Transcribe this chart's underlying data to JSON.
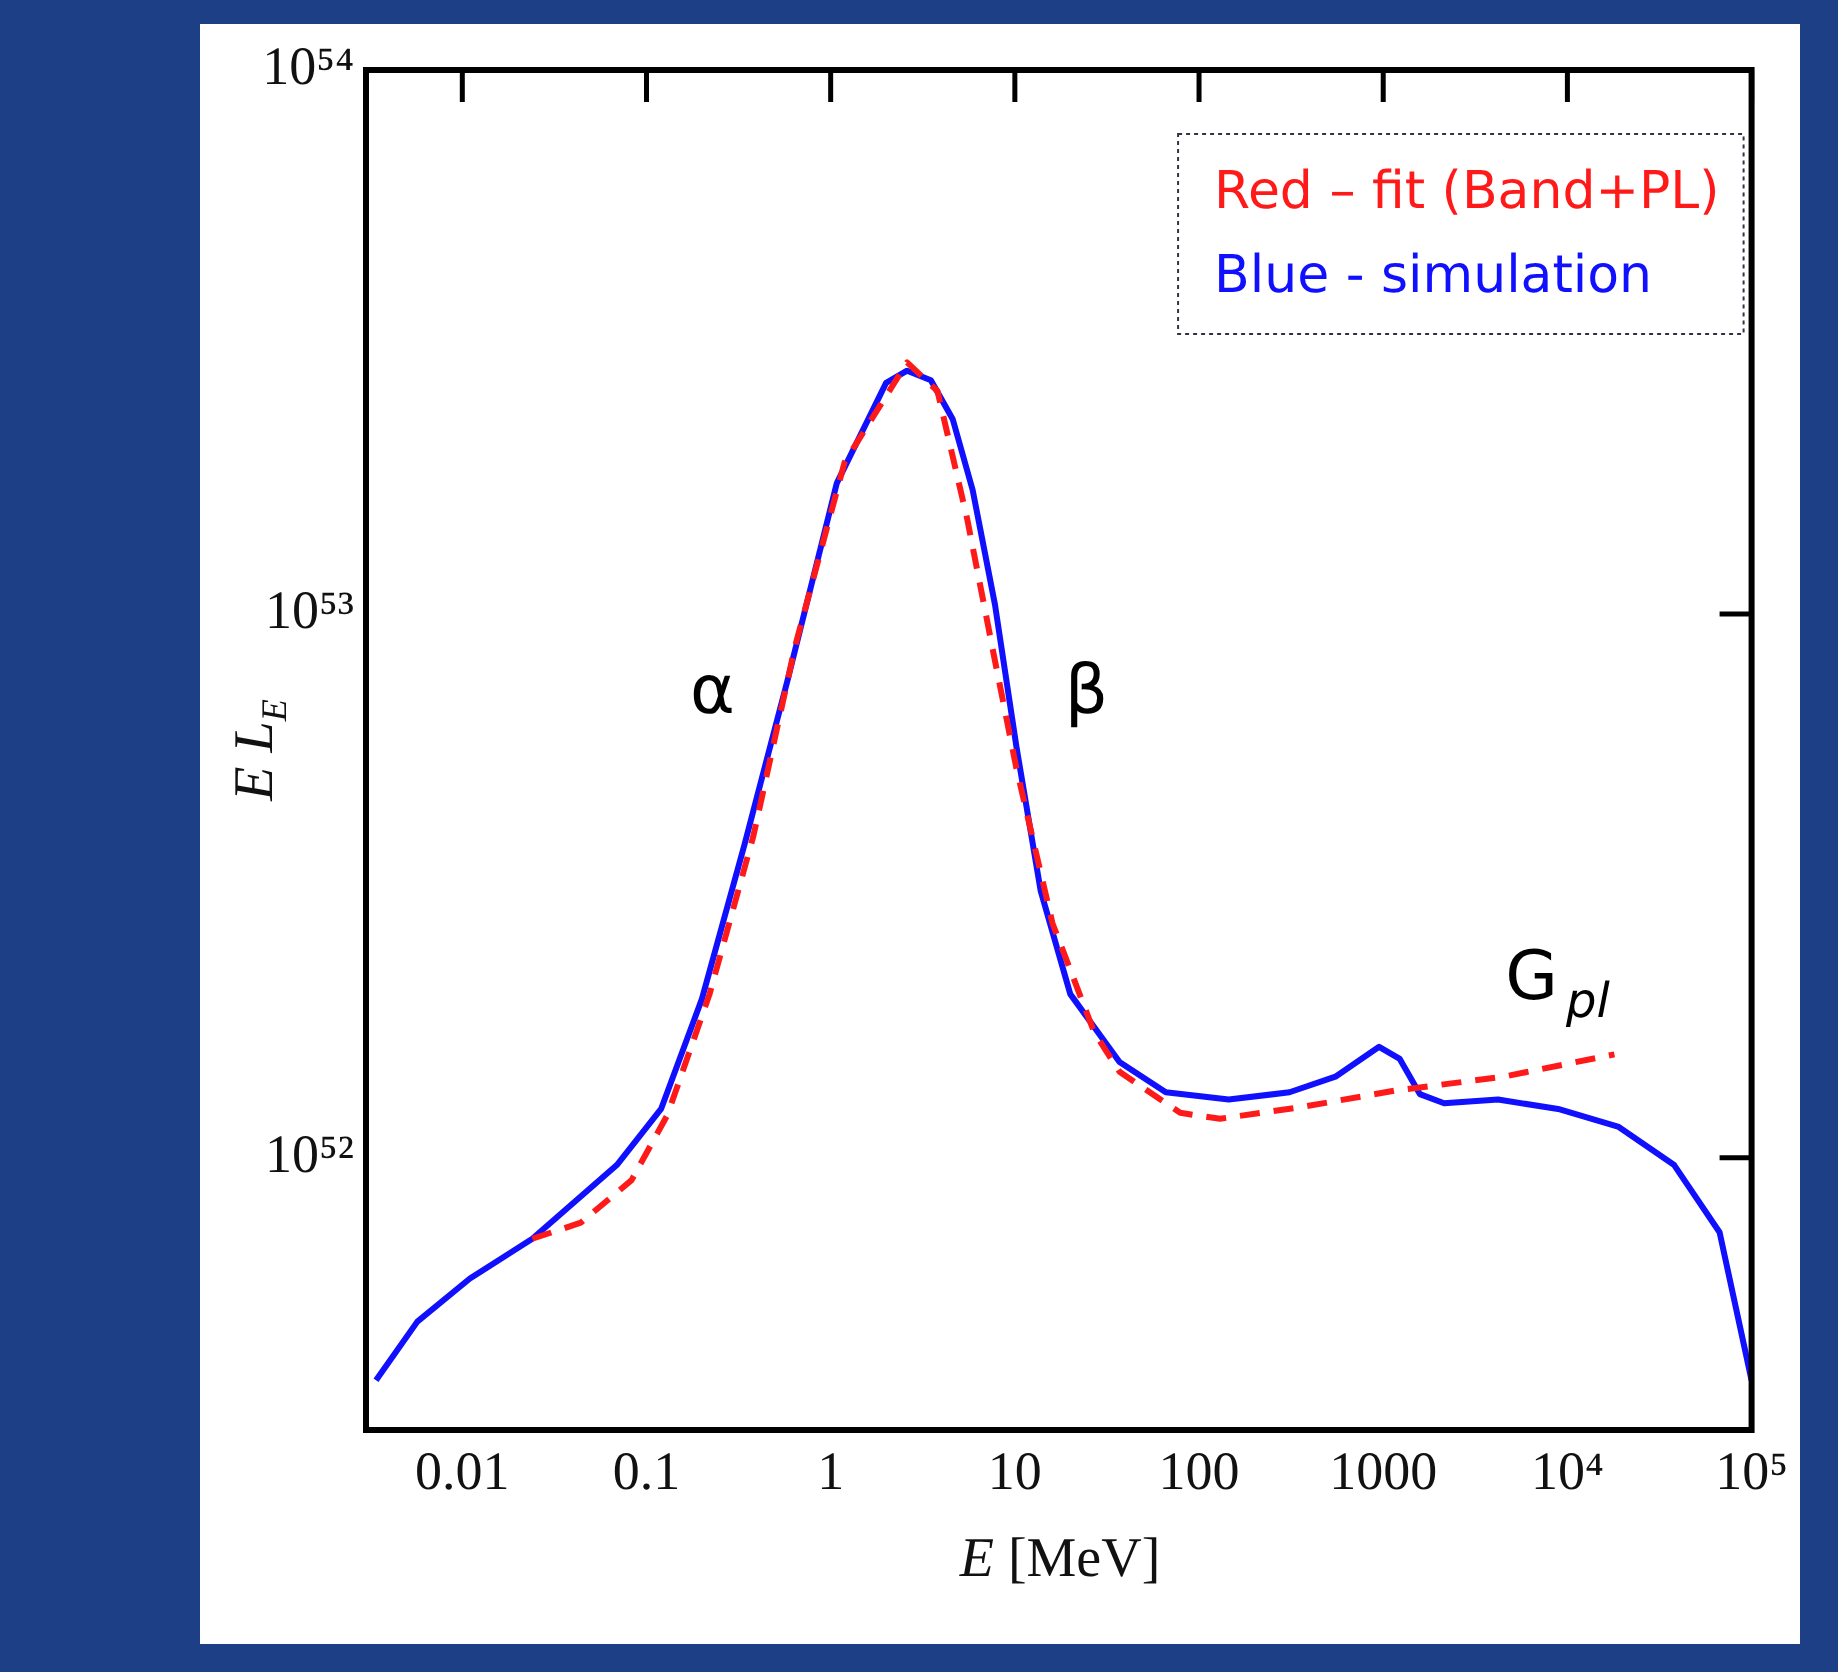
{
  "chart_data": {
    "type": "line",
    "xlabel": "E [MeV]",
    "ylabel": "E L$_{E}$",
    "log": "xy",
    "xlim": [
      0.003,
      100000
    ],
    "ylim": [
      3.16e+51,
      1e+54
    ],
    "xticks": [
      0.01,
      0.1,
      1,
      10,
      100,
      1000,
      {
        "value": 10000,
        "label": "10⁴"
      },
      {
        "value": 100000,
        "label": "10⁵"
      }
    ],
    "yticks": [
      {
        "value": 1e+52,
        "label": "10⁵²"
      },
      {
        "value": 1e+53,
        "label": "10⁵³"
      },
      {
        "value": 1e+54,
        "label": "10⁵⁴"
      }
    ],
    "legend": "top right",
    "marker": "none",
    "annotations": [
      "α",
      "β",
      "G$_{pl}$"
    ],
    "series": [
      {
        "name": "Red – fit (Band+PL)",
        "color": "#ff1a1a",
        "line_style": "dashed",
        "x": [
          0.024,
          0.044,
          0.083,
          0.13,
          0.22,
          0.38,
          0.64,
          1.19,
          2.6,
          3.8,
          5.5,
          7.8,
          10.2,
          16,
          27,
          37,
          79,
          130,
          360,
          1170,
          4500,
          18000
        ],
        "values": [
          7.1e+51,
          7.6e+51,
          9.1e+51,
          1.2e+52,
          2e+52,
          3.9e+52,
          8.7e+52,
          1.9e+53,
          2.9e+53,
          2.57e+53,
          1.5e+53,
          8.2e+52,
          5.2e+52,
          2.7e+52,
          1.7e+52,
          1.44e+52,
          1.21e+52,
          1.18e+52,
          1.24e+52,
          1.33e+52,
          1.41e+52,
          1.55e+52
        ]
      },
      {
        "name": "Blue - simulation",
        "color": "#1010ff",
        "line_style": "solid",
        "x": [
          0.0034,
          0.0057,
          0.011,
          0.024,
          0.069,
          0.12,
          0.2,
          0.34,
          0.58,
          1.08,
          2.0,
          2.6,
          3.5,
          4.6,
          5.9,
          7.8,
          10.2,
          13.8,
          20,
          37,
          66,
          145,
          310,
          550,
          950,
          1230,
          1580,
          2140,
          4200,
          8900,
          19000,
          38000,
          67000,
          100000
        ],
        "values": [
          3.9e+51,
          5e+51,
          6e+51,
          7.1e+51,
          9.7e+51,
          1.23e+52,
          1.96e+52,
          3.76e+52,
          7.5e+52,
          1.74e+53,
          2.66e+53,
          2.8e+53,
          2.69e+53,
          2.28e+53,
          1.69e+53,
          1.04e+53,
          5.7e+52,
          3.1e+52,
          2e+52,
          1.5e+52,
          1.32e+52,
          1.28e+52,
          1.32e+52,
          1.41e+52,
          1.6e+52,
          1.52e+52,
          1.31e+52,
          1.26e+52,
          1.28e+52,
          1.23e+52,
          1.14e+52,
          9.7e+51,
          7.3e+51,
          3.9e+51
        ]
      }
    ]
  }
}
